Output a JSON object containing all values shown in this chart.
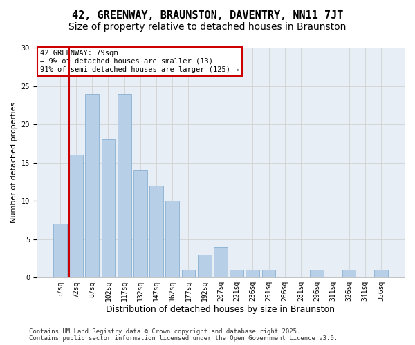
{
  "title": "42, GREENWAY, BRAUNSTON, DAVENTRY, NN11 7JT",
  "subtitle": "Size of property relative to detached houses in Braunston",
  "xlabel": "Distribution of detached houses by size in Braunston",
  "ylabel": "Number of detached properties",
  "categories": [
    "57sq",
    "72sq",
    "87sq",
    "102sq",
    "117sq",
    "132sq",
    "147sq",
    "162sq",
    "177sq",
    "192sq",
    "207sq",
    "221sq",
    "236sq",
    "251sq",
    "266sq",
    "281sq",
    "296sq",
    "311sq",
    "326sq",
    "341sq",
    "356sq"
  ],
  "values": [
    7,
    16,
    24,
    18,
    24,
    14,
    12,
    10,
    1,
    3,
    4,
    1,
    1,
    1,
    0,
    0,
    1,
    0,
    1,
    0,
    1
  ],
  "bar_color": "#b8cfe8",
  "bar_edge_color": "#7ba7cc",
  "vline_color": "#cc0000",
  "vline_pos": 0.575,
  "annotation_text": "42 GREENWAY: 79sqm\n← 9% of detached houses are smaller (13)\n91% of semi-detached houses are larger (125) →",
  "annotation_box_color": "#cc0000",
  "ylim": [
    0,
    30
  ],
  "yticks": [
    0,
    5,
    10,
    15,
    20,
    25,
    30
  ],
  "grid_color": "#cccccc",
  "bg_color": "#e8eef5",
  "footer_text": "Contains HM Land Registry data © Crown copyright and database right 2025.\nContains public sector information licensed under the Open Government Licence v3.0.",
  "title_fontsize": 11,
  "subtitle_fontsize": 10,
  "xlabel_fontsize": 9,
  "ylabel_fontsize": 8,
  "tick_fontsize": 7,
  "annotation_fontsize": 7.5,
  "footer_fontsize": 6.5
}
